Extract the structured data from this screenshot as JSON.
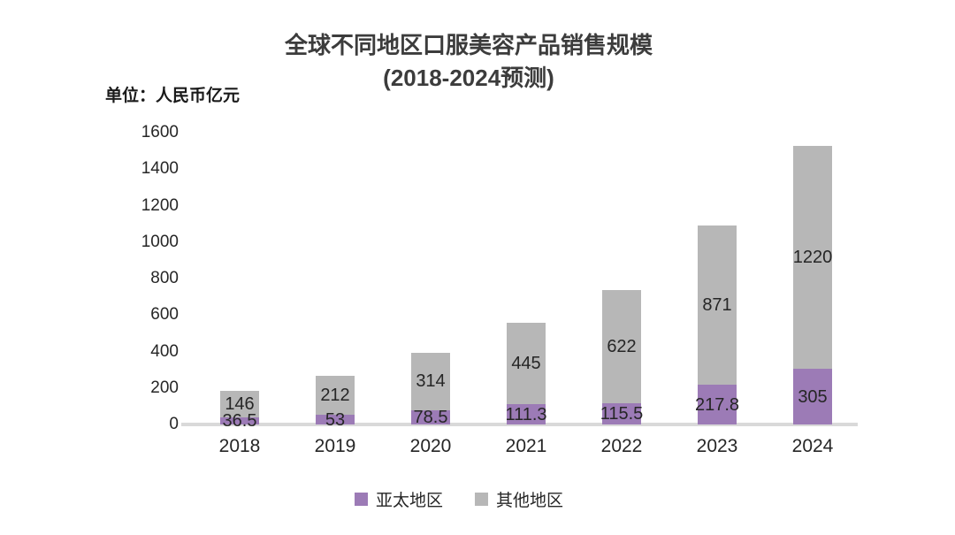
{
  "chart_data": {
    "type": "bar",
    "stacked": true,
    "title": "全球不同地区口服美容产品销售规模",
    "subtitle": "(2018-2024预测)",
    "unit_label": "单位：人民币亿元",
    "categories": [
      "2018",
      "2019",
      "2020",
      "2021",
      "2022",
      "2023",
      "2024"
    ],
    "series": [
      {
        "name": "亚太地区",
        "color": "#9c7bb6",
        "values": [
          36.5,
          53,
          78.5,
          111.3,
          115.5,
          217.8,
          305
        ]
      },
      {
        "name": "其他地区",
        "color": "#b7b7b7",
        "values": [
          146,
          212,
          314,
          445,
          622,
          871,
          1220
        ]
      }
    ],
    "ylim": [
      0,
      1600
    ],
    "yticks": [
      0,
      200,
      400,
      600,
      800,
      1000,
      1200,
      1400,
      1600
    ],
    "grid": false,
    "legend_position": "bottom",
    "data_labels": "inside-center",
    "colors": {
      "title_text": "#3c3c3c",
      "label_text": "#262626",
      "axis_line": "#d9d9d9",
      "background": "#ffffff"
    }
  }
}
